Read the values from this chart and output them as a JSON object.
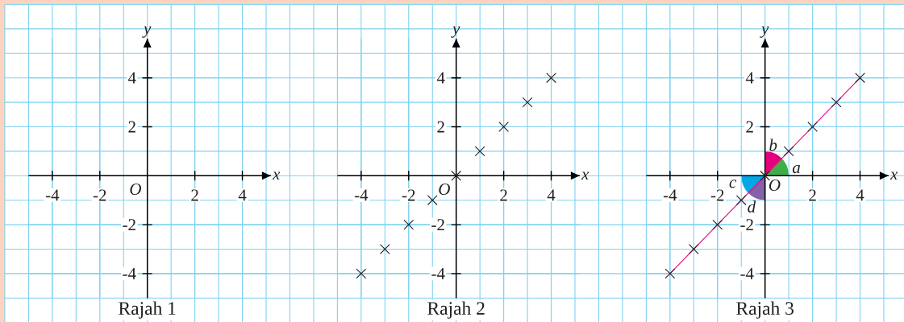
{
  "chart_data": [
    {
      "type": "scatter",
      "title": "Rajah 1",
      "xlabel": "x",
      "ylabel": "y",
      "xlim": [
        -5,
        5.2
      ],
      "ylim": [
        -5,
        5.6
      ],
      "xticks": [
        -4,
        -2,
        2,
        4
      ],
      "yticks": [
        -4,
        -2,
        2,
        4
      ],
      "grid": true,
      "annotations": [
        "O"
      ]
    },
    {
      "type": "scatter",
      "title": "Rajah 2",
      "xlabel": "x",
      "ylabel": "y",
      "xlim": [
        -5,
        5.2
      ],
      "ylim": [
        -5,
        5.6
      ],
      "xticks": [
        -4,
        -2,
        2,
        4
      ],
      "yticks": [
        -4,
        -2,
        2,
        4
      ],
      "grid": true,
      "marker": "cross",
      "annotations": [
        "O"
      ],
      "series": [
        {
          "color": "#231f20",
          "x": [
            -4,
            -3,
            -2,
            -1,
            0,
            1,
            2,
            3,
            4
          ],
          "values": [
            -4,
            -3,
            -2,
            -1,
            0,
            1,
            2,
            3,
            4
          ]
        }
      ]
    },
    {
      "type": "scatter",
      "title": "Rajah 3",
      "xlabel": "x",
      "ylabel": "y",
      "xlim": [
        -5,
        5.2
      ],
      "ylim": [
        -5,
        5.6
      ],
      "xticks": [
        -4,
        -2,
        2,
        4
      ],
      "yticks": [
        -4,
        -2,
        2,
        4
      ],
      "grid": true,
      "marker": "cross",
      "annotations": [
        "O",
        "a",
        "b",
        "c",
        "d"
      ],
      "series": [
        {
          "type": "line",
          "marker": "none",
          "color": "#e6007e",
          "x": [
            -4,
            4
          ],
          "values": [
            -4,
            4
          ]
        },
        {
          "color": "#231f20",
          "x": [
            -4,
            -3,
            -2,
            -1,
            0,
            1,
            2,
            3,
            4
          ],
          "values": [
            -4,
            -3,
            -2,
            -1,
            0,
            1,
            2,
            3,
            4
          ]
        }
      ]
    }
  ]
}
